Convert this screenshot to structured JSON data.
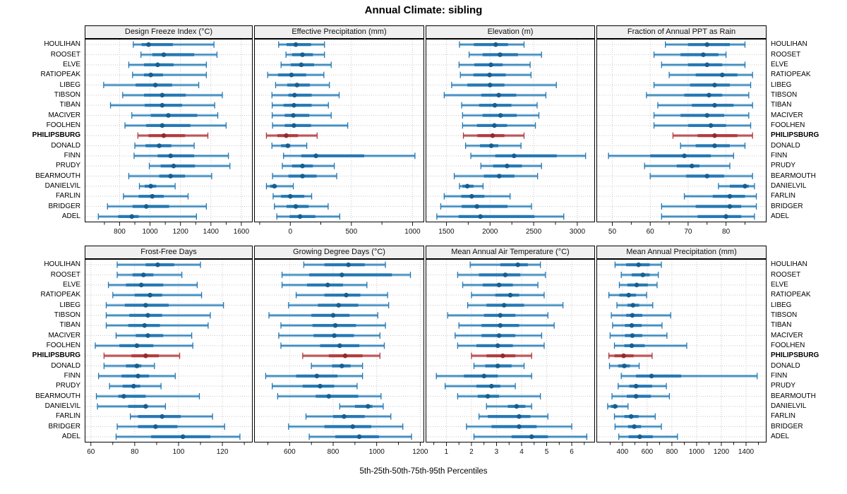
{
  "title": "Annual Climate: sibling",
  "caption": "5th-25th-50th-75th-95th Percentiles",
  "stations": [
    "HOULIHAN",
    "ROOSET",
    "ELVE",
    "RATIOPEAK",
    "LIBEG",
    "TIBSON",
    "TIBAN",
    "MACIVER",
    "FOOLHEN",
    "PHILIPSBURG",
    "DONALD",
    "FINN",
    "PRUDY",
    "BEARMOUTH",
    "DANIELVIL",
    "FARLIN",
    "BRIDGER",
    "ADEL"
  ],
  "highlight_station": "PHILIPSBURG",
  "colors": {
    "blue_main": "#2478b4",
    "blue_dark": "#175e8f",
    "blue_light": "#9cc6e0",
    "red_main": "#b23b3e",
    "red_dark": "#8f2c30",
    "red_light": "#d89597",
    "grid": "#c9c9c9",
    "strip_bg": "#f0f0f0",
    "border": "#000000"
  },
  "chart_data": [
    {
      "type": "dot-range",
      "title": "Design Freeze Index (°C)",
      "xlim": [
        575,
        1670
      ],
      "ticks": [
        800,
        1000,
        1200,
        1400,
        1600
      ],
      "values": [
        [
          890,
          945,
          990,
          1150,
          1420
        ],
        [
          940,
          1015,
          1090,
          1290,
          1440
        ],
        [
          860,
          960,
          1050,
          1155,
          1370
        ],
        [
          885,
          960,
          1005,
          1085,
          1370
        ],
        [
          695,
          905,
          1035,
          1145,
          1320
        ],
        [
          820,
          960,
          1080,
          1235,
          1475
        ],
        [
          740,
          965,
          1080,
          1210,
          1425
        ],
        [
          880,
          1005,
          1120,
          1310,
          1445
        ],
        [
          835,
          975,
          1080,
          1265,
          1500
        ],
        [
          920,
          990,
          1090,
          1230,
          1380
        ],
        [
          900,
          970,
          1060,
          1140,
          1290
        ],
        [
          895,
          1050,
          1135,
          1290,
          1515
        ],
        [
          995,
          1070,
          1155,
          1295,
          1525
        ],
        [
          860,
          1060,
          1135,
          1230,
          1405
        ],
        [
          930,
          965,
          1005,
          1040,
          1165
        ],
        [
          825,
          925,
          1015,
          1090,
          1250
        ],
        [
          720,
          885,
          975,
          1125,
          1370
        ],
        [
          660,
          790,
          880,
          925,
          1305
        ]
      ]
    },
    {
      "type": "dot-range",
      "title": "Effective Precipitation (mm)",
      "xlim": [
        -290,
        1090
      ],
      "ticks": [
        0,
        500,
        1000
      ],
      "values": [
        [
          -95,
          -30,
          45,
          170,
          280
        ],
        [
          -35,
          15,
          100,
          185,
          280
        ],
        [
          -75,
          5,
          90,
          195,
          335
        ],
        [
          -185,
          -100,
          10,
          130,
          275
        ],
        [
          -120,
          -25,
          55,
          160,
          320
        ],
        [
          -150,
          -15,
          35,
          175,
          400
        ],
        [
          -148,
          -55,
          30,
          175,
          312
        ],
        [
          -148,
          -45,
          25,
          155,
          335
        ],
        [
          -145,
          -45,
          30,
          170,
          470
        ],
        [
          -195,
          -105,
          -33,
          63,
          220
        ],
        [
          -150,
          -75,
          -20,
          0,
          135
        ],
        [
          -55,
          90,
          210,
          605,
          1020
        ],
        [
          -65,
          15,
          100,
          185,
          360
        ],
        [
          -145,
          -15,
          100,
          215,
          380
        ],
        [
          -195,
          -165,
          -130,
          -110,
          25
        ],
        [
          -140,
          -75,
          0,
          115,
          175
        ],
        [
          -130,
          -30,
          45,
          150,
          310
        ],
        [
          -110,
          -5,
          80,
          205,
          405
        ]
      ]
    },
    {
      "type": "dot-range",
      "title": "Elevation (m)",
      "xlim": [
        1270,
        3195
      ],
      "ticks": [
        1500,
        2000,
        2500,
        3000
      ],
      "values": [
        [
          1650,
          1815,
          2065,
          2205,
          2390
        ],
        [
          1760,
          1915,
          2115,
          2320,
          2590
        ],
        [
          1645,
          1820,
          2010,
          2145,
          2460
        ],
        [
          1660,
          1810,
          1995,
          2180,
          2470
        ],
        [
          1560,
          1740,
          2000,
          2165,
          2760
        ],
        [
          1475,
          1900,
          2100,
          2300,
          2640
        ],
        [
          1675,
          1875,
          2055,
          2245,
          2540
        ],
        [
          1685,
          1915,
          2120,
          2305,
          2560
        ],
        [
          1685,
          1850,
          2050,
          2195,
          2520
        ],
        [
          1695,
          1855,
          2030,
          2165,
          2390
        ],
        [
          1720,
          1885,
          2015,
          2095,
          2355
        ],
        [
          1780,
          2060,
          2275,
          2765,
          3095
        ],
        [
          1895,
          2035,
          2195,
          2365,
          2590
        ],
        [
          1590,
          1930,
          2105,
          2280,
          2545
        ],
        [
          1650,
          1685,
          1740,
          1810,
          1920
        ],
        [
          1475,
          1670,
          1790,
          1935,
          2230
        ],
        [
          1435,
          1675,
          1850,
          2200,
          2475
        ],
        [
          1390,
          1640,
          1890,
          2510,
          2845
        ]
      ]
    },
    {
      "type": "dot-range",
      "title": "Fraction of Annual PPT as Rain",
      "xlim": [
        46,
        90.5
      ],
      "ticks": [
        50,
        60,
        70,
        80
      ],
      "values": [
        [
          64,
          70,
          75,
          81,
          85
        ],
        [
          61,
          68,
          74,
          78,
          80
        ],
        [
          63,
          70,
          75,
          79,
          85
        ],
        [
          65,
          72,
          79,
          83,
          87
        ],
        [
          61,
          70.5,
          77,
          81,
          86.5
        ],
        [
          59,
          69,
          75.5,
          79,
          86
        ],
        [
          62,
          71,
          77,
          82,
          87
        ],
        [
          61,
          68,
          75,
          79.5,
          86
        ],
        [
          61,
          70,
          76,
          80,
          86.5
        ],
        [
          66,
          72.5,
          77,
          83,
          87
        ],
        [
          68,
          72,
          77,
          81,
          85
        ],
        [
          49,
          60,
          69,
          76,
          82
        ],
        [
          58.5,
          67,
          71,
          73,
          81
        ],
        [
          60,
          69.5,
          75,
          79.5,
          87
        ],
        [
          78,
          81,
          85,
          86,
          87.5
        ],
        [
          69,
          76.5,
          81,
          85,
          88
        ],
        [
          63,
          72,
          81,
          84,
          88
        ],
        [
          63,
          72.5,
          80,
          84,
          87.5
        ]
      ]
    },
    {
      "type": "dot-range",
      "title": "Frost-Free Days",
      "xlim": [
        57.5,
        133.5
      ],
      "ticks": [
        60,
        80,
        100,
        120
      ],
      "values": [
        [
          72,
          85,
          90.5,
          98,
          110
        ],
        [
          72,
          79,
          84,
          88.5,
          101.5
        ],
        [
          68,
          76,
          83,
          93,
          108.5
        ],
        [
          70,
          80,
          87,
          92.5,
          110.5
        ],
        [
          67,
          75.5,
          85,
          95.5,
          120.5
        ],
        [
          67,
          77.5,
          86,
          92.5,
          114.5
        ],
        [
          67,
          77,
          84.5,
          91.5,
          113.5
        ],
        [
          71.5,
          80.5,
          86,
          93,
          106
        ],
        [
          62,
          73,
          81,
          88.5,
          106.5
        ],
        [
          66,
          78.5,
          85,
          91,
          100.5
        ],
        [
          66,
          76,
          81,
          83,
          89
        ],
        [
          63.5,
          74,
          81.5,
          86.5,
          98.5
        ],
        [
          68.5,
          74.5,
          79.5,
          82.5,
          92
        ],
        [
          62.5,
          72.5,
          75,
          85,
          109.5
        ],
        [
          63,
          77,
          85,
          86,
          94
        ],
        [
          78,
          81.5,
          92.5,
          101,
          115.5
        ],
        [
          72,
          81.5,
          89.5,
          99.5,
          121
        ],
        [
          71.5,
          87.5,
          102,
          114.5,
          128
        ]
      ]
    },
    {
      "type": "dot-range",
      "title": "Growing Degree Days (°C)",
      "xlim": [
        440,
        1215
      ],
      "ticks": [
        600,
        800,
        1000,
        1200
      ],
      "values": [
        [
          665,
          760,
          870,
          945,
          1040
        ],
        [
          565,
          690,
          840,
          1070,
          1155
        ],
        [
          565,
          680,
          775,
          845,
          955
        ],
        [
          630,
          760,
          860,
          925,
          1050
        ],
        [
          595,
          730,
          825,
          915,
          1055
        ],
        [
          505,
          700,
          800,
          875,
          1005
        ],
        [
          560,
          705,
          810,
          905,
          1040
        ],
        [
          550,
          710,
          805,
          895,
          1015
        ],
        [
          560,
          740,
          830,
          920,
          1035
        ],
        [
          660,
          780,
          855,
          935,
          1015
        ],
        [
          700,
          795,
          840,
          880,
          935
        ],
        [
          490,
          630,
          725,
          820,
          935
        ],
        [
          520,
          660,
          740,
          805,
          910
        ],
        [
          545,
          720,
          780,
          915,
          1020
        ],
        [
          830,
          900,
          960,
          980,
          1030
        ],
        [
          675,
          800,
          850,
          945,
          1065
        ],
        [
          595,
          760,
          890,
          975,
          1120
        ],
        [
          690,
          810,
          920,
          1010,
          1160
        ]
      ]
    },
    {
      "type": "dot-range",
      "title": "Mean Annual Air Temperature (°C)",
      "xlim": [
        0.2,
        6.9
      ],
      "ticks": [
        1,
        2,
        3,
        4,
        5,
        6
      ],
      "values": [
        [
          1.95,
          3.15,
          3.85,
          4.25,
          4.75
        ],
        [
          1.45,
          2.3,
          3.35,
          3.95,
          4.95
        ],
        [
          1.65,
          2.45,
          3.1,
          3.65,
          4.65
        ],
        [
          2.0,
          2.95,
          3.55,
          3.9,
          4.9
        ],
        [
          1.85,
          2.6,
          3.3,
          4.1,
          5.65
        ],
        [
          1.05,
          2.5,
          3.15,
          3.75,
          5.05
        ],
        [
          1.5,
          2.4,
          3.15,
          3.9,
          5.3
        ],
        [
          1.35,
          2.4,
          3.1,
          3.75,
          4.8
        ],
        [
          1.45,
          2.2,
          3.05,
          3.65,
          4.9
        ],
        [
          2.0,
          2.6,
          3.25,
          3.75,
          4.4
        ],
        [
          2.1,
          2.55,
          3.05,
          3.6,
          4.1
        ],
        [
          0.6,
          1.7,
          2.5,
          3.05,
          4.4
        ],
        [
          0.95,
          2.2,
          2.8,
          3.15,
          3.75
        ],
        [
          1.45,
          2.25,
          2.65,
          3.1,
          4.75
        ],
        [
          2.6,
          3.45,
          3.8,
          4.15,
          4.4
        ],
        [
          2.3,
          2.65,
          3.9,
          4.35,
          5.05
        ],
        [
          1.8,
          2.8,
          3.9,
          4.6,
          6.0
        ],
        [
          2.1,
          3.6,
          4.4,
          5.05,
          6.6
        ]
      ]
    },
    {
      "type": "dot-range",
      "title": "Mean Annual Precipitation (mm)",
      "xlim": [
        195,
        1560
      ],
      "ticks": [
        400,
        600,
        800,
        1000,
        1200,
        1400
      ],
      "values": [
        [
          340,
          430,
          530,
          620,
          715
        ],
        [
          390,
          475,
          565,
          620,
          690
        ],
        [
          375,
          440,
          515,
          605,
          680
        ],
        [
          290,
          375,
          450,
          510,
          595
        ],
        [
          355,
          440,
          485,
          535,
          645
        ],
        [
          310,
          430,
          480,
          560,
          790
        ],
        [
          320,
          420,
          475,
          555,
          720
        ],
        [
          300,
          420,
          480,
          560,
          760
        ],
        [
          335,
          415,
          475,
          580,
          920
        ],
        [
          290,
          335,
          410,
          490,
          640
        ],
        [
          295,
          365,
          415,
          460,
          535
        ],
        [
          390,
          510,
          635,
          875,
          1490
        ],
        [
          365,
          455,
          510,
          640,
          755
        ],
        [
          315,
          435,
          510,
          630,
          780
        ],
        [
          280,
          305,
          340,
          360,
          445
        ],
        [
          335,
          415,
          470,
          530,
          665
        ],
        [
          340,
          445,
          495,
          550,
          715
        ],
        [
          370,
          450,
          540,
          645,
          845
        ]
      ]
    }
  ]
}
